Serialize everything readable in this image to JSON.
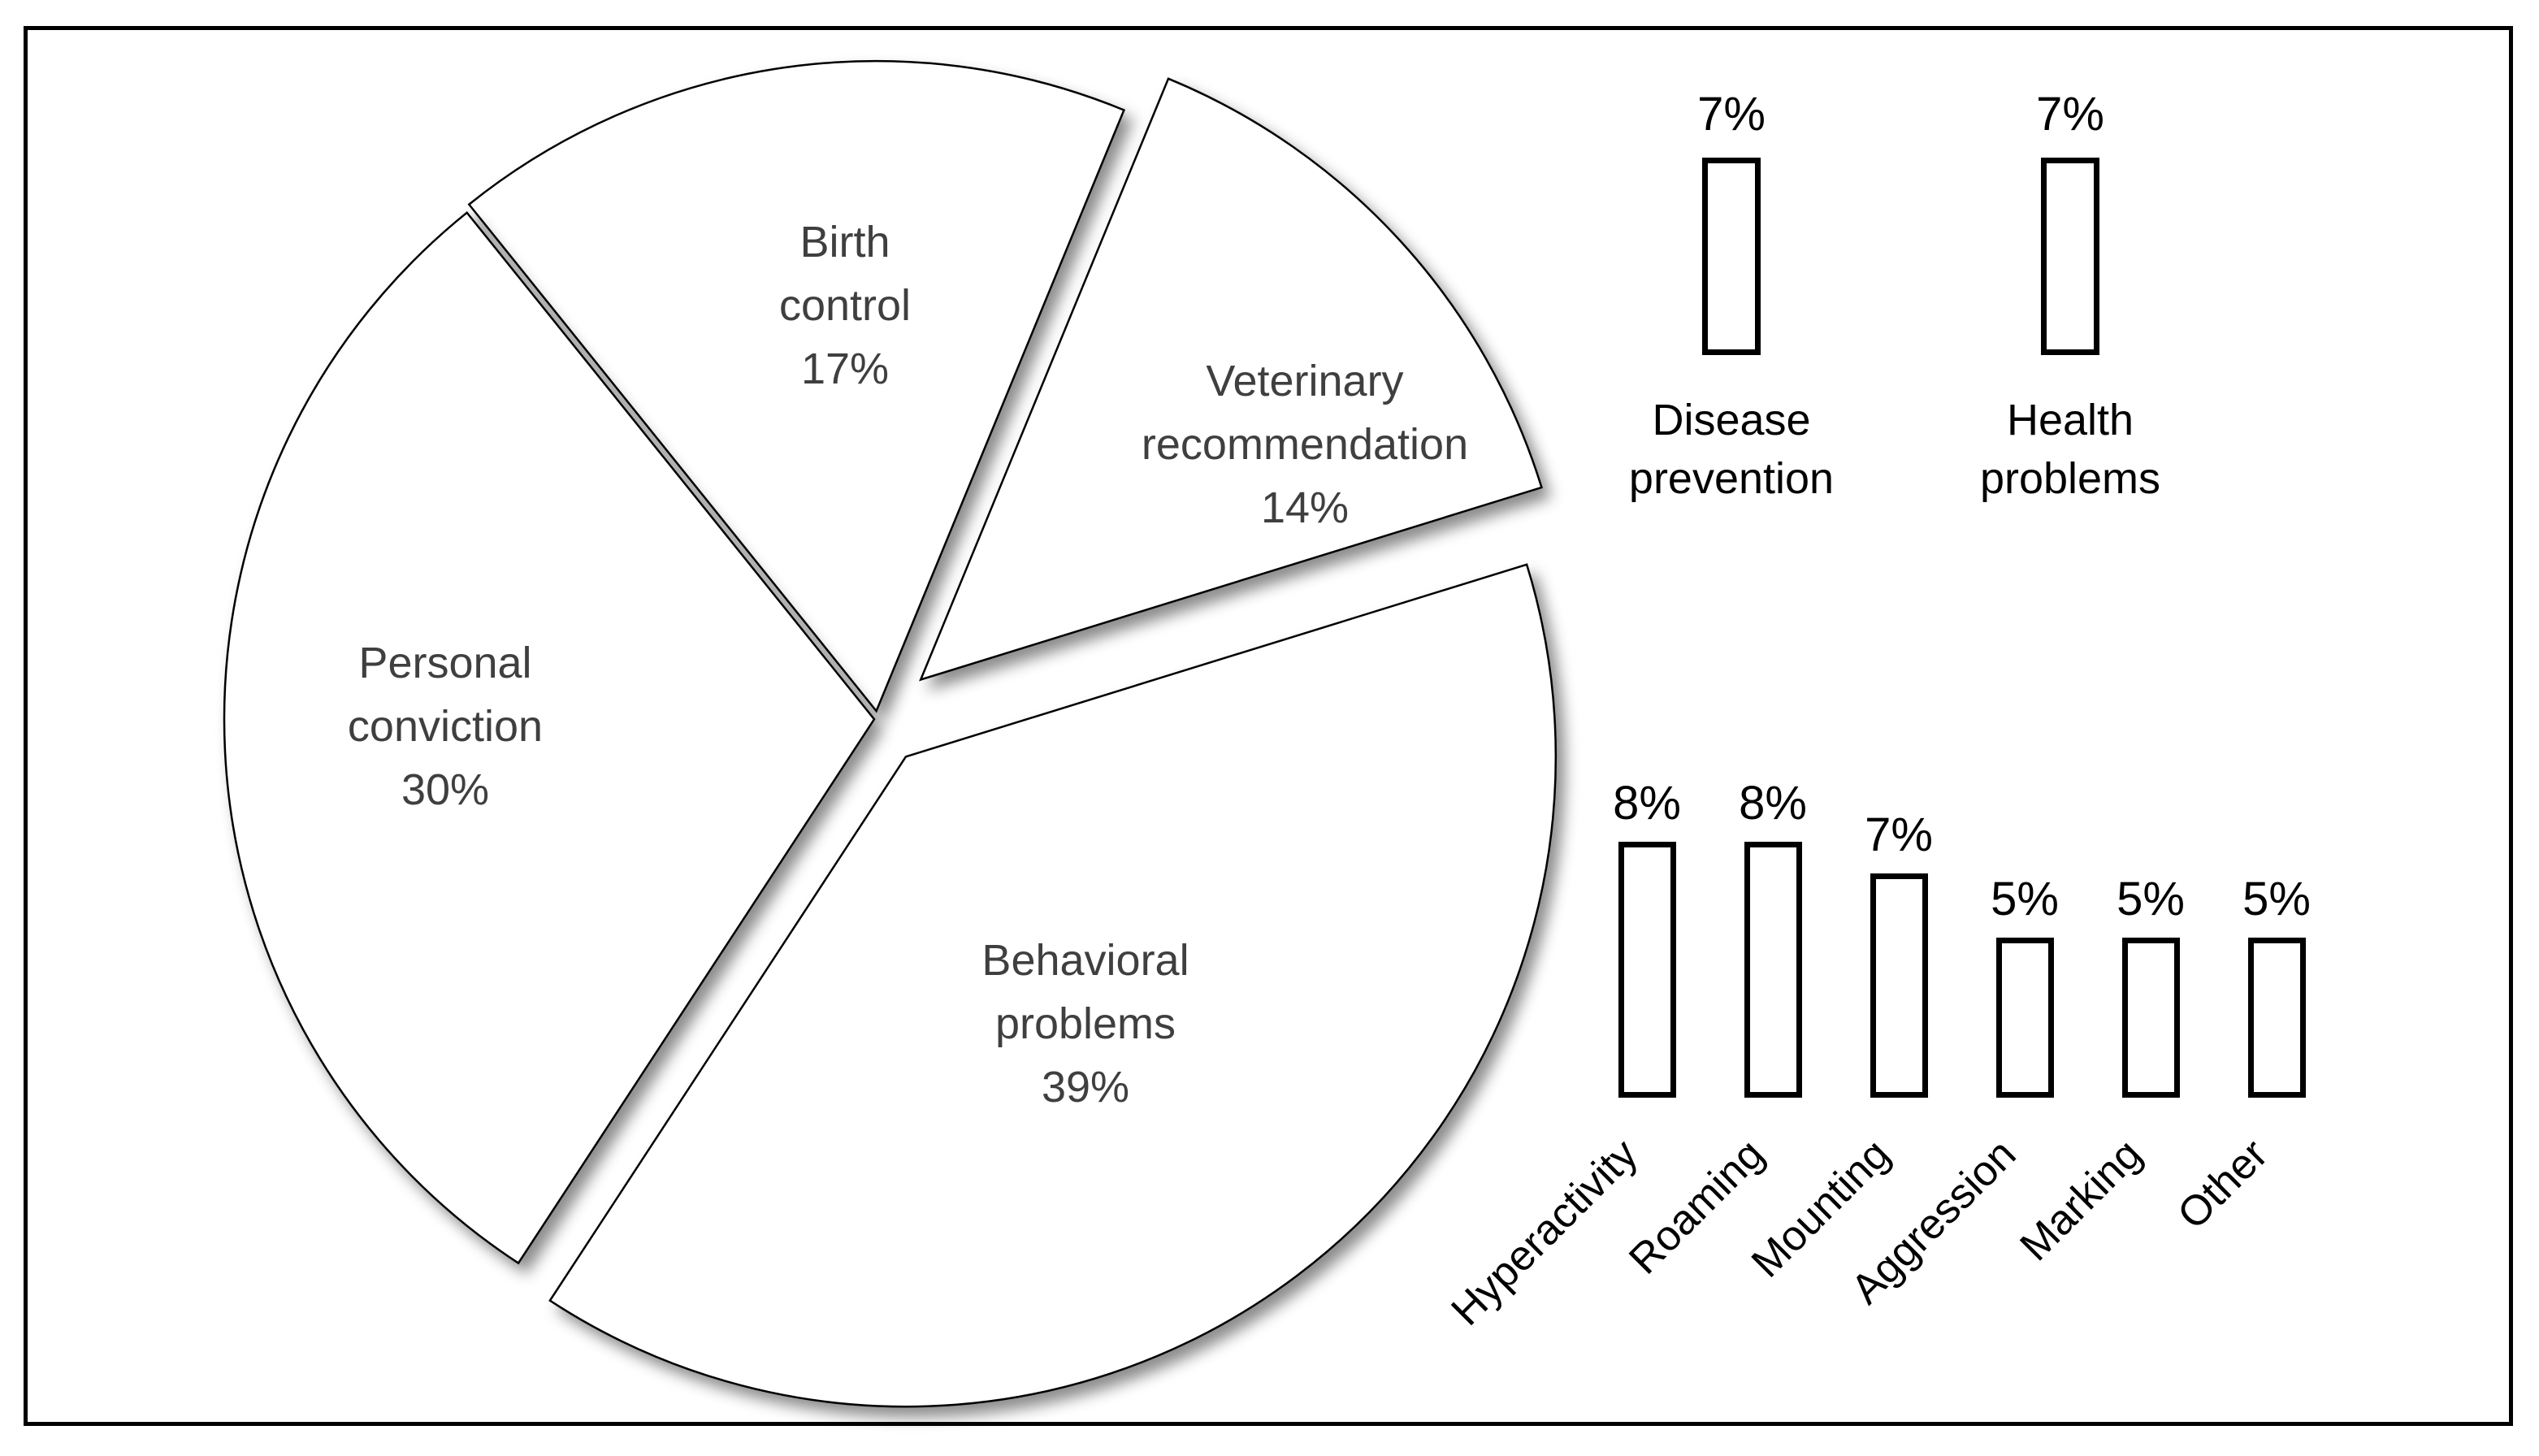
{
  "figure": {
    "background_color": "#ffffff",
    "border_color": "#000000",
    "pie_text_color": "#3f3f3f",
    "bar_text_color": "#000000",
    "shape_fill_color": "#ffffff",
    "shape_stroke_color": "#000000"
  },
  "chart_data": [
    {
      "id": "neutering-reasons-pie",
      "type": "pie",
      "exploded": true,
      "start_angle_deg": -38.8,
      "legend_position": "none",
      "labels_inside_slices": true,
      "slices": [
        {
          "label": "Birth control",
          "label_lines": [
            "Birth",
            "control"
          ],
          "value": 17,
          "value_label": "17%"
        },
        {
          "label": "Veterinary recommendation",
          "label_lines": [
            "Veterinary",
            "recommendation"
          ],
          "value": 14,
          "value_label": "14%"
        },
        {
          "label": "Behavioral problems",
          "label_lines": [
            "Behavioral",
            "problems"
          ],
          "value": 39,
          "value_label": "39%"
        },
        {
          "label": "Personal conviction",
          "label_lines": [
            "Personal",
            "conviction"
          ],
          "value": 30,
          "value_label": "30%"
        }
      ]
    },
    {
      "id": "health-reasons-bars",
      "type": "bar",
      "grid": false,
      "axis_visible": false,
      "categories": [
        "Disease prevention",
        "Health problems"
      ],
      "category_lines": [
        [
          "Disease",
          "prevention"
        ],
        [
          "Health",
          "problems"
        ]
      ],
      "values": [
        7,
        7
      ],
      "data_labels": [
        "7%",
        "7%"
      ],
      "ylim": [
        0,
        8
      ]
    },
    {
      "id": "behavioral-reasons-bars",
      "type": "bar",
      "grid": false,
      "axis_visible": false,
      "category_label_rotation_deg": 45,
      "categories": [
        "Hyperactivity",
        "Roaming",
        "Mounting",
        "Aggression",
        "Marking",
        "Other"
      ],
      "values": [
        8,
        8,
        7,
        5,
        5,
        5
      ],
      "data_labels": [
        "8%",
        "8%",
        "7%",
        "5%",
        "5%",
        "5%"
      ],
      "ylim": [
        0,
        8
      ]
    }
  ]
}
